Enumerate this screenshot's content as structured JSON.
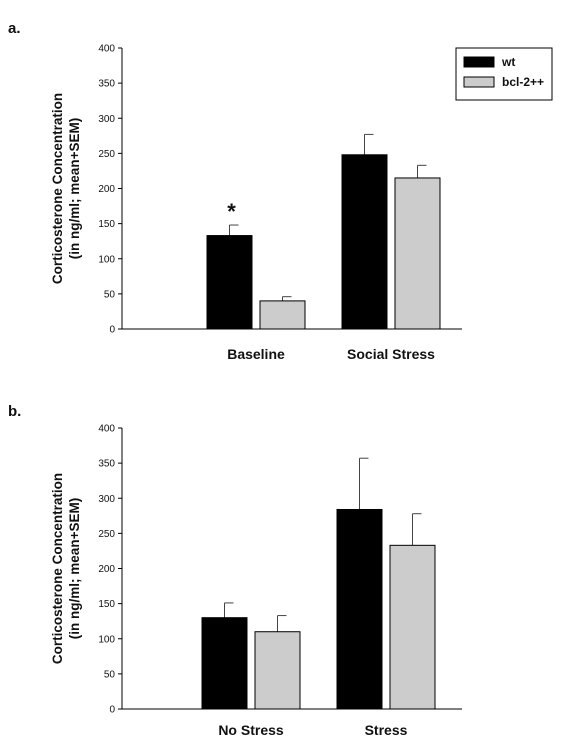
{
  "chart_data": [
    {
      "type": "bar",
      "panel_label": "a.",
      "categories": [
        "Baseline",
        "Social Stress"
      ],
      "series": [
        {
          "name": "wt",
          "color": "#000000",
          "values": [
            133,
            248
          ],
          "errors": [
            15,
            29
          ]
        },
        {
          "name": "bcl-2++",
          "color": "#cccccc",
          "values": [
            40,
            215
          ],
          "errors": [
            6,
            18
          ]
        }
      ],
      "ylabel_lines": [
        "Corticosterone Concentration",
        "(in ng/ml; mean+SEM)"
      ],
      "ylim": [
        0,
        400
      ],
      "yticks": [
        0,
        50,
        100,
        150,
        200,
        250,
        300,
        350,
        400
      ],
      "legend": "top-right",
      "grid": false,
      "annotations": [
        {
          "text": "*",
          "category": "Baseline",
          "series": "wt"
        }
      ]
    },
    {
      "type": "bar",
      "panel_label": "b.",
      "categories": [
        "No Stress",
        "Stress"
      ],
      "series": [
        {
          "name": "wt",
          "color": "#000000",
          "values": [
            130,
            284
          ],
          "errors": [
            21,
            73
          ]
        },
        {
          "name": "bcl-2++",
          "color": "#cccccc",
          "values": [
            110,
            233
          ],
          "errors": [
            23,
            45
          ]
        }
      ],
      "ylabel_lines": [
        "Corticosterone Concentration",
        "(in ng/ml; mean+SEM)"
      ],
      "ylim": [
        0,
        400
      ],
      "yticks": [
        0,
        50,
        100,
        150,
        200,
        250,
        300,
        350,
        400
      ],
      "legend": "none",
      "grid": false,
      "annotations": []
    }
  ]
}
